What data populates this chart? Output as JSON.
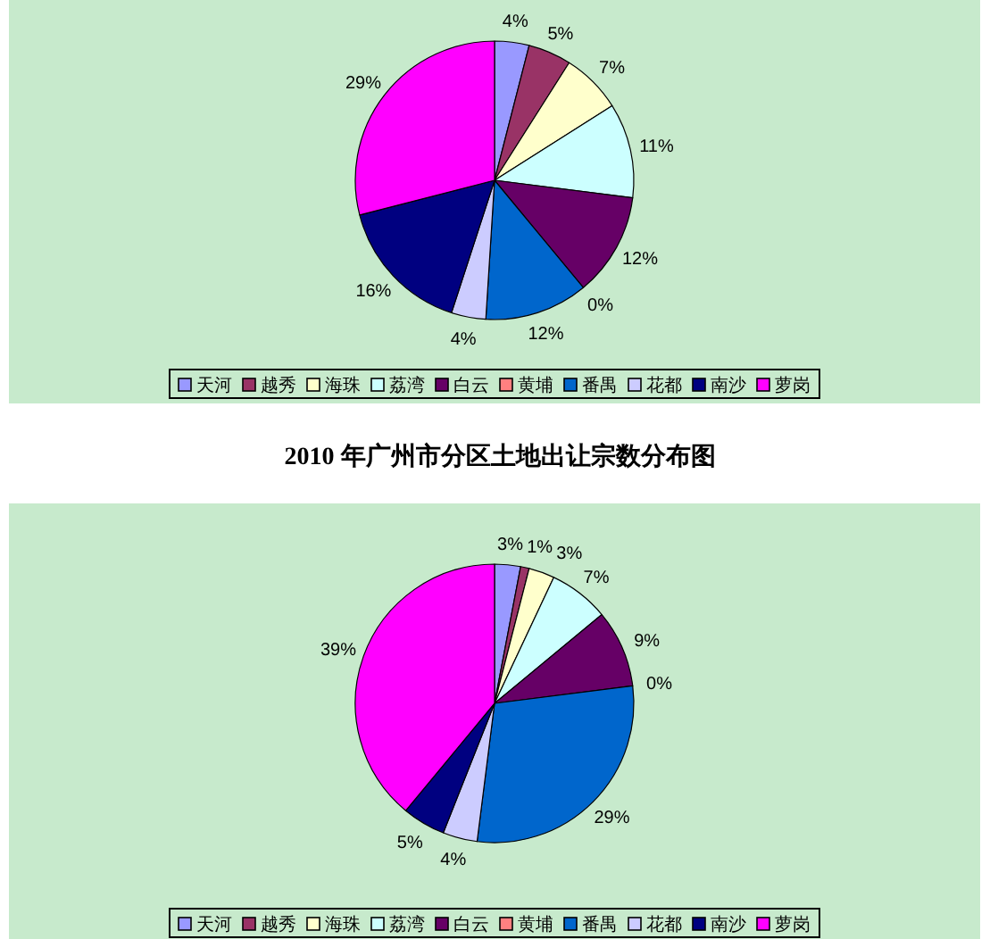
{
  "chart_data": [
    {
      "type": "pie",
      "categories": [
        "天河",
        "越秀",
        "海珠",
        "荔湾",
        "白云",
        "黄埔",
        "番禺",
        "花都",
        "南沙",
        "萝岗"
      ],
      "values": [
        4,
        5,
        7,
        11,
        12,
        0,
        12,
        4,
        16,
        29
      ],
      "colors": [
        "#9999ff",
        "#993366",
        "#ffffcc",
        "#ccffff",
        "#660066",
        "#ff8080",
        "#0066cc",
        "#ccccff",
        "#000080",
        "#ff00ff"
      ],
      "value_labels": [
        "4%",
        "5%",
        "7%",
        "11%",
        "12%",
        "0%",
        "12%",
        "4%",
        "16%",
        "29%"
      ],
      "legend": "bottom"
    },
    {
      "type": "pie",
      "title": "2010 年广州市分区土地出让宗数分布图",
      "categories": [
        "天河",
        "越秀",
        "海珠",
        "荔湾",
        "白云",
        "黄埔",
        "番禺",
        "花都",
        "南沙",
        "萝岗"
      ],
      "values": [
        3,
        1,
        3,
        7,
        9,
        0,
        29,
        4,
        5,
        39
      ],
      "colors": [
        "#9999ff",
        "#993366",
        "#ffffcc",
        "#ccffff",
        "#660066",
        "#ff8080",
        "#0066cc",
        "#ccccff",
        "#000080",
        "#ff00ff"
      ],
      "value_labels": [
        "3%",
        "1%",
        "3%",
        "7%",
        "9%",
        "0%",
        "29%",
        "4%",
        "5%",
        "39%"
      ],
      "legend": "bottom"
    }
  ]
}
